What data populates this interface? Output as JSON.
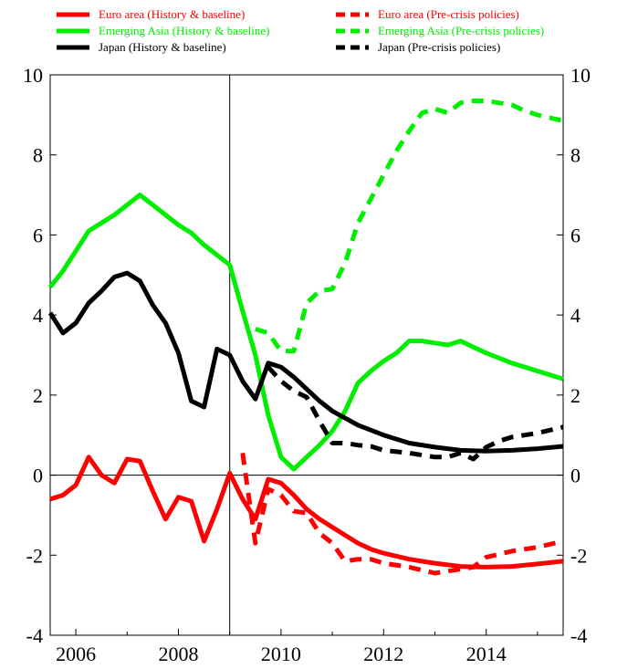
{
  "chart_data": {
    "type": "line",
    "title": "",
    "xlabel": "",
    "ylabel": "",
    "xlim": [
      2005.5,
      2015.5
    ],
    "ylim": [
      -4,
      10
    ],
    "x_ticks": [
      2006,
      2008,
      2010,
      2012,
      2014
    ],
    "y_ticks": [
      -4,
      -2,
      0,
      2,
      4,
      6,
      8,
      10
    ],
    "grid": false,
    "vertical_marker_x": 2009.0,
    "zero_line": true,
    "legend_position": "top",
    "series": [
      {
        "name": "Euro area (History & baseline)",
        "color": "#ff0000",
        "dash": "solid",
        "points": [
          [
            2005.5,
            -0.6
          ],
          [
            2005.75,
            -0.5
          ],
          [
            2006.0,
            -0.25
          ],
          [
            2006.25,
            0.45
          ],
          [
            2006.5,
            0.0
          ],
          [
            2006.75,
            -0.2
          ],
          [
            2007.0,
            0.4
          ],
          [
            2007.25,
            0.35
          ],
          [
            2007.5,
            -0.4
          ],
          [
            2007.75,
            -1.1
          ],
          [
            2008.0,
            -0.55
          ],
          [
            2008.25,
            -0.65
          ],
          [
            2008.5,
            -1.65
          ],
          [
            2008.75,
            -0.85
          ],
          [
            2009.0,
            0.05
          ],
          [
            2009.25,
            -0.6
          ],
          [
            2009.5,
            -1.1
          ],
          [
            2009.75,
            -0.1
          ],
          [
            2010.0,
            -0.2
          ],
          [
            2010.25,
            -0.5
          ],
          [
            2010.5,
            -0.85
          ],
          [
            2010.75,
            -1.1
          ],
          [
            2011.0,
            -1.3
          ],
          [
            2011.25,
            -1.5
          ],
          [
            2011.5,
            -1.7
          ],
          [
            2011.75,
            -1.85
          ],
          [
            2012.0,
            -1.95
          ],
          [
            2012.5,
            -2.1
          ],
          [
            2013.0,
            -2.2
          ],
          [
            2013.5,
            -2.28
          ],
          [
            2014.0,
            -2.3
          ],
          [
            2014.5,
            -2.28
          ],
          [
            2015.0,
            -2.22
          ],
          [
            2015.5,
            -2.15
          ]
        ]
      },
      {
        "name": "Euro area (Pre-crisis policies)",
        "color": "#ff0000",
        "dash": "dashed",
        "points": [
          [
            2009.25,
            0.55
          ],
          [
            2009.5,
            -1.7
          ],
          [
            2009.75,
            -0.35
          ],
          [
            2010.0,
            -0.5
          ],
          [
            2010.25,
            -0.9
          ],
          [
            2010.5,
            -0.95
          ],
          [
            2010.75,
            -1.45
          ],
          [
            2011.0,
            -1.7
          ],
          [
            2011.25,
            -2.15
          ],
          [
            2011.5,
            -2.1
          ],
          [
            2011.75,
            -2.1
          ],
          [
            2012.0,
            -2.2
          ],
          [
            2012.5,
            -2.3
          ],
          [
            2013.0,
            -2.45
          ],
          [
            2013.5,
            -2.35
          ],
          [
            2013.75,
            -2.3
          ],
          [
            2014.0,
            -2.05
          ],
          [
            2014.5,
            -1.9
          ],
          [
            2015.0,
            -1.8
          ],
          [
            2015.5,
            -1.65
          ]
        ]
      },
      {
        "name": "Emerging Asia (History & baseline)",
        "color": "#00ee00",
        "dash": "solid",
        "points": [
          [
            2005.5,
            4.7
          ],
          [
            2005.75,
            5.1
          ],
          [
            2006.0,
            5.6
          ],
          [
            2006.25,
            6.1
          ],
          [
            2006.5,
            6.3
          ],
          [
            2006.75,
            6.5
          ],
          [
            2007.0,
            6.75
          ],
          [
            2007.25,
            7.0
          ],
          [
            2007.5,
            6.75
          ],
          [
            2007.75,
            6.5
          ],
          [
            2008.0,
            6.25
          ],
          [
            2008.25,
            6.05
          ],
          [
            2008.5,
            5.75
          ],
          [
            2008.75,
            5.5
          ],
          [
            2009.0,
            5.25
          ],
          [
            2009.25,
            4.1
          ],
          [
            2009.5,
            3.0
          ],
          [
            2009.75,
            1.5
          ],
          [
            2010.0,
            0.45
          ],
          [
            2010.25,
            0.15
          ],
          [
            2010.5,
            0.45
          ],
          [
            2010.75,
            0.75
          ],
          [
            2011.0,
            1.1
          ],
          [
            2011.25,
            1.6
          ],
          [
            2011.5,
            2.3
          ],
          [
            2011.75,
            2.6
          ],
          [
            2012.0,
            2.85
          ],
          [
            2012.25,
            3.05
          ],
          [
            2012.5,
            3.35
          ],
          [
            2012.75,
            3.35
          ],
          [
            2013.0,
            3.3
          ],
          [
            2013.25,
            3.25
          ],
          [
            2013.5,
            3.35
          ],
          [
            2013.75,
            3.2
          ],
          [
            2014.0,
            3.05
          ],
          [
            2014.5,
            2.8
          ],
          [
            2015.0,
            2.6
          ],
          [
            2015.5,
            2.4
          ]
        ]
      },
      {
        "name": "Emerging Asia (Pre-crisis policies)",
        "color": "#00ee00",
        "dash": "dashed",
        "points": [
          [
            2009.5,
            3.65
          ],
          [
            2009.75,
            3.55
          ],
          [
            2010.0,
            3.1
          ],
          [
            2010.25,
            3.1
          ],
          [
            2010.5,
            4.3
          ],
          [
            2010.75,
            4.6
          ],
          [
            2011.0,
            4.65
          ],
          [
            2011.25,
            5.3
          ],
          [
            2011.5,
            6.3
          ],
          [
            2011.75,
            6.9
          ],
          [
            2012.0,
            7.5
          ],
          [
            2012.25,
            8.1
          ],
          [
            2012.5,
            8.6
          ],
          [
            2012.75,
            9.05
          ],
          [
            2013.0,
            9.15
          ],
          [
            2013.25,
            9.05
          ],
          [
            2013.5,
            9.3
          ],
          [
            2013.75,
            9.35
          ],
          [
            2014.0,
            9.35
          ],
          [
            2014.25,
            9.3
          ],
          [
            2014.5,
            9.25
          ],
          [
            2014.75,
            9.1
          ],
          [
            2015.0,
            9.0
          ],
          [
            2015.5,
            8.85
          ]
        ]
      },
      {
        "name": "Japan (History & baseline)",
        "color": "#000000",
        "dash": "solid",
        "points": [
          [
            2005.5,
            4.05
          ],
          [
            2005.75,
            3.55
          ],
          [
            2006.0,
            3.8
          ],
          [
            2006.25,
            4.3
          ],
          [
            2006.5,
            4.6
          ],
          [
            2006.75,
            4.95
          ],
          [
            2007.0,
            5.05
          ],
          [
            2007.25,
            4.85
          ],
          [
            2007.5,
            4.25
          ],
          [
            2007.75,
            3.8
          ],
          [
            2008.0,
            3.05
          ],
          [
            2008.25,
            1.85
          ],
          [
            2008.5,
            1.7
          ],
          [
            2008.75,
            3.15
          ],
          [
            2009.0,
            3.0
          ],
          [
            2009.25,
            2.35
          ],
          [
            2009.5,
            1.9
          ],
          [
            2009.75,
            2.8
          ],
          [
            2010.0,
            2.7
          ],
          [
            2010.25,
            2.45
          ],
          [
            2010.5,
            2.15
          ],
          [
            2010.75,
            1.85
          ],
          [
            2011.0,
            1.6
          ],
          [
            2011.5,
            1.25
          ],
          [
            2012.0,
            1.0
          ],
          [
            2012.5,
            0.8
          ],
          [
            2013.0,
            0.7
          ],
          [
            2013.5,
            0.62
          ],
          [
            2014.0,
            0.6
          ],
          [
            2014.5,
            0.62
          ],
          [
            2015.0,
            0.66
          ],
          [
            2015.5,
            0.72
          ]
        ]
      },
      {
        "name": "Japan (Pre-crisis policies)",
        "color": "#000000",
        "dash": "dashed",
        "points": [
          [
            2009.75,
            2.7
          ],
          [
            2010.0,
            2.35
          ],
          [
            2010.25,
            2.1
          ],
          [
            2010.5,
            1.95
          ],
          [
            2010.75,
            1.35
          ],
          [
            2011.0,
            0.8
          ],
          [
            2011.25,
            0.8
          ],
          [
            2011.5,
            0.75
          ],
          [
            2011.75,
            0.72
          ],
          [
            2012.0,
            0.62
          ],
          [
            2012.5,
            0.55
          ],
          [
            2013.0,
            0.45
          ],
          [
            2013.25,
            0.45
          ],
          [
            2013.5,
            0.55
          ],
          [
            2013.75,
            0.4
          ],
          [
            2014.0,
            0.7
          ],
          [
            2014.25,
            0.85
          ],
          [
            2014.5,
            0.95
          ],
          [
            2014.75,
            1.0
          ],
          [
            2015.0,
            1.05
          ],
          [
            2015.5,
            1.2
          ]
        ]
      }
    ]
  }
}
